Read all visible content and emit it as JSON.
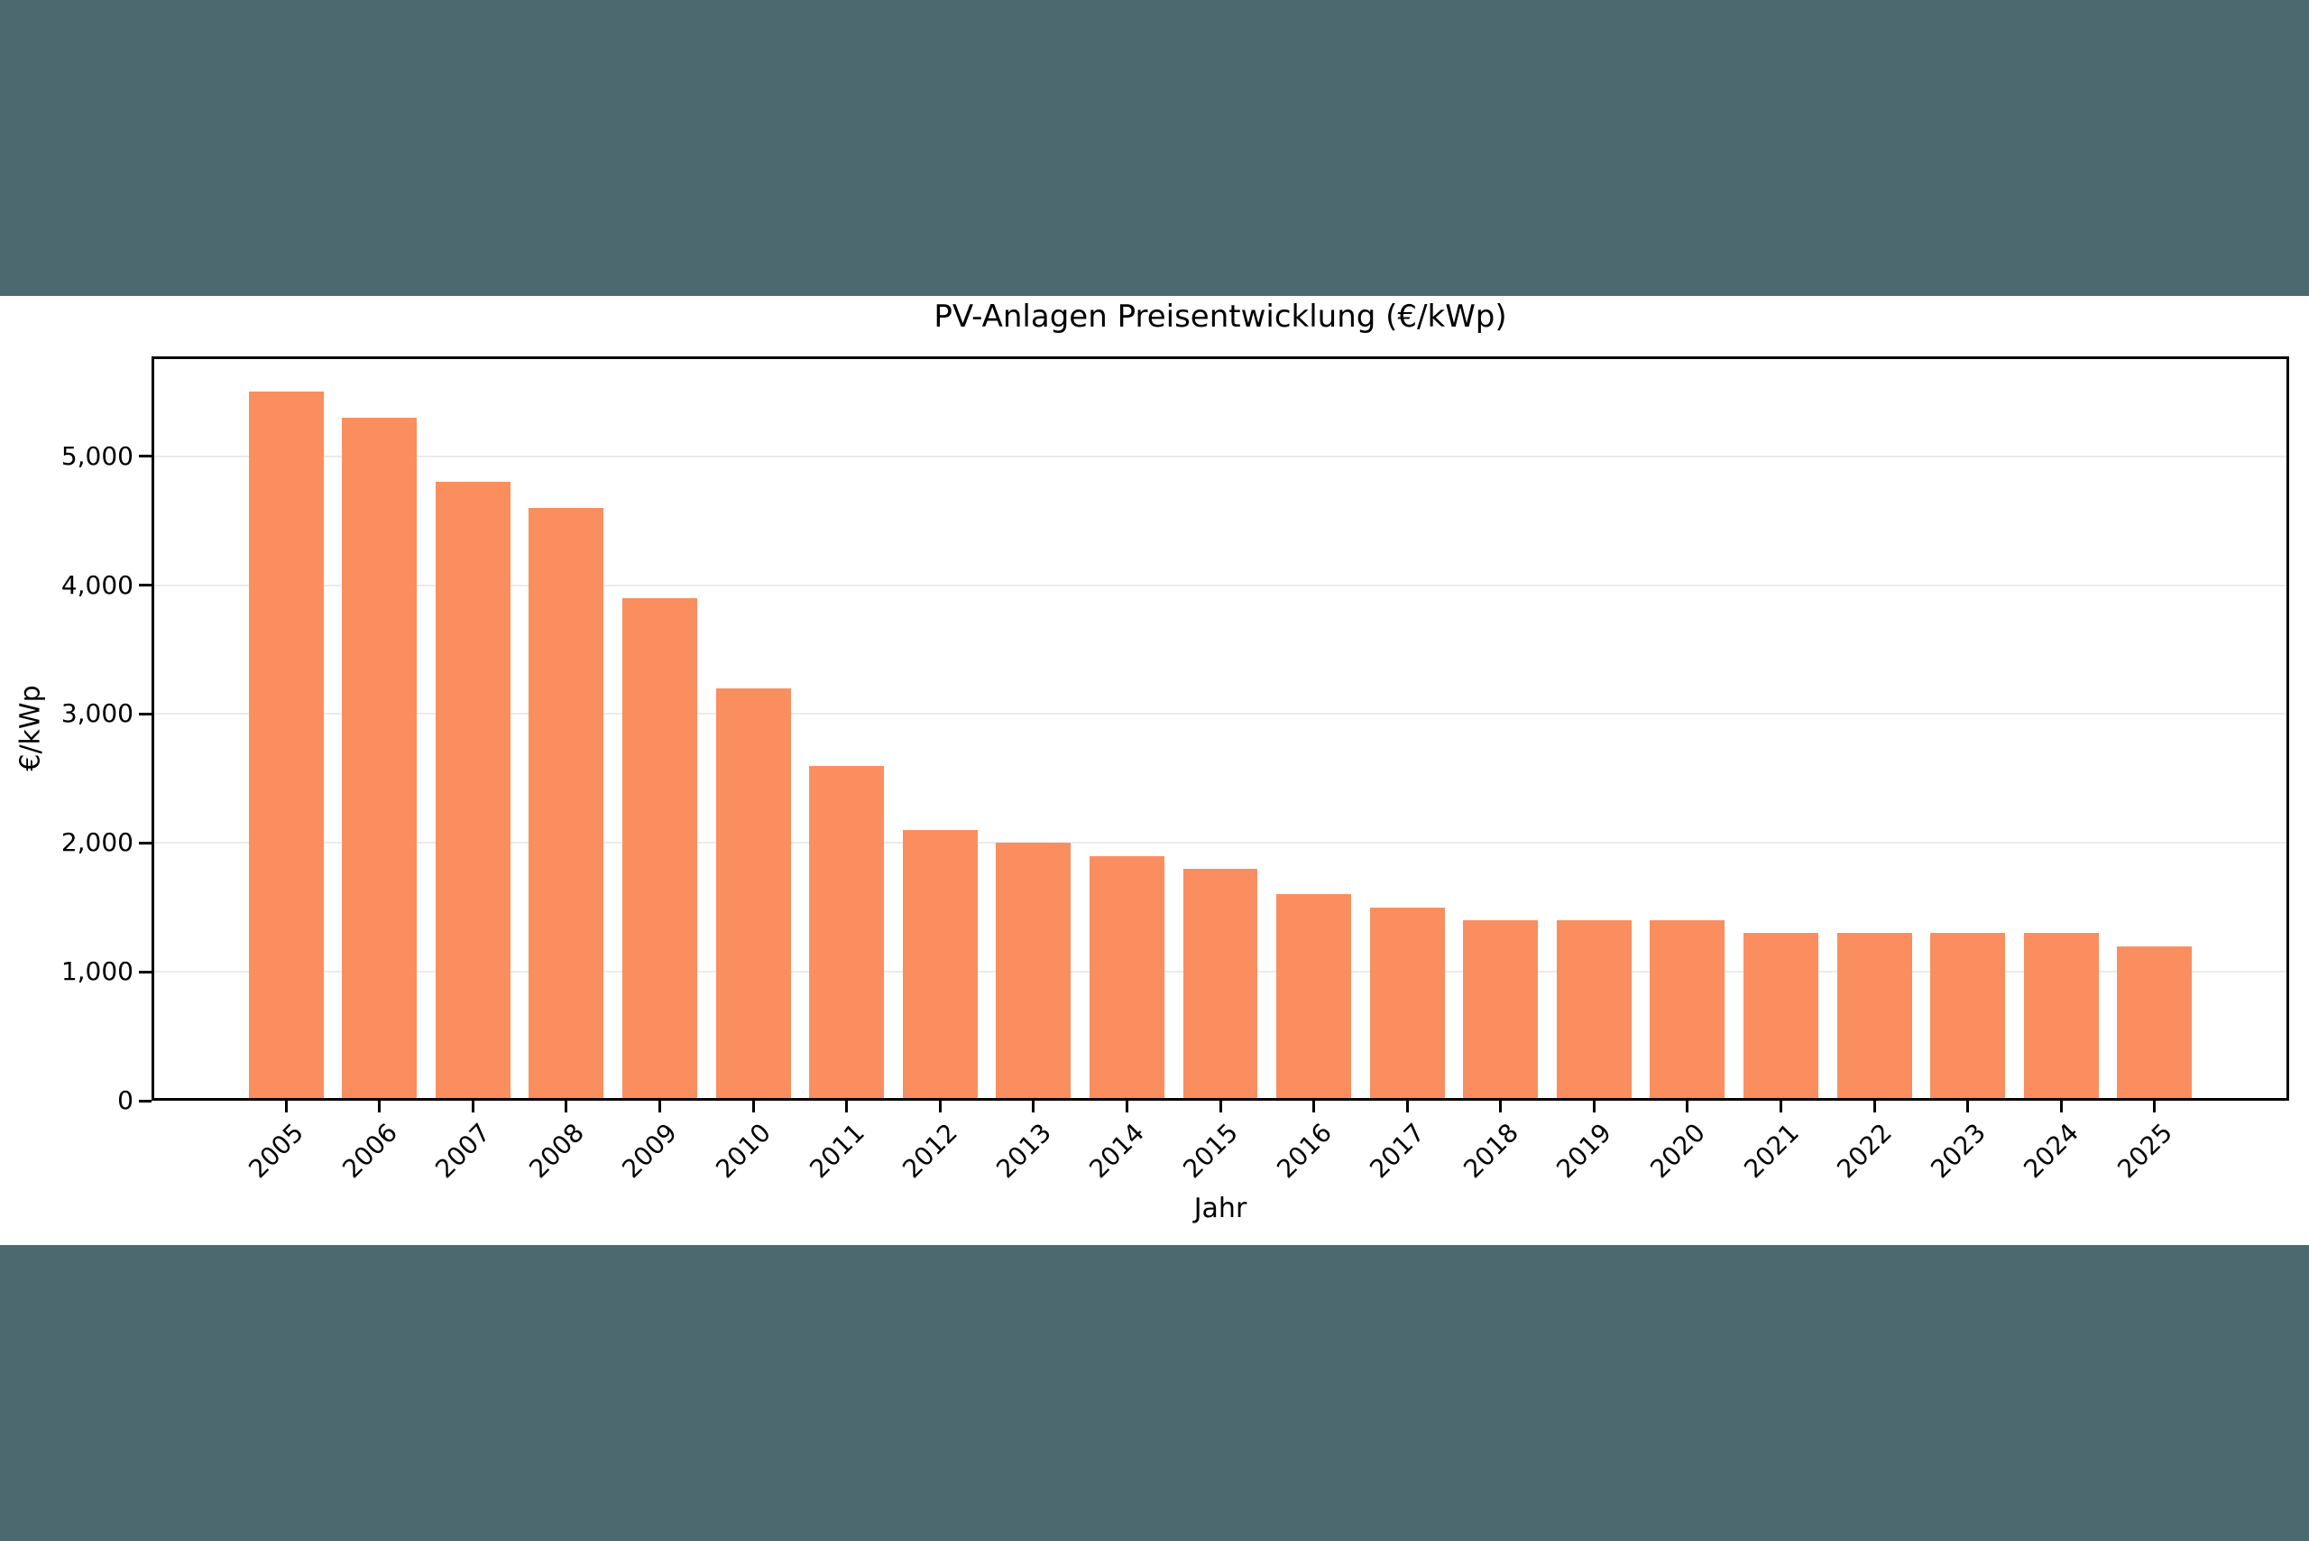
{
  "colors": {
    "letterbox_band": "#4c6970",
    "figure_background": "#ffffff",
    "bar_fill": "#fa8e5e",
    "gridline": "#ebebeb",
    "axis": "#000000"
  },
  "chart_data": {
    "type": "bar",
    "title": "PV-Anlagen Preisentwicklung (€/kWp)",
    "xlabel": "Jahr",
    "ylabel": "€/kWp",
    "categories": [
      "2005",
      "2006",
      "2007",
      "2008",
      "2009",
      "2010",
      "2011",
      "2012",
      "2013",
      "2014",
      "2015",
      "2016",
      "2017",
      "2018",
      "2019",
      "2020",
      "2021",
      "2022",
      "2023",
      "2024",
      "2025"
    ],
    "values": [
      5500,
      5300,
      4800,
      4600,
      3900,
      3200,
      2600,
      2100,
      2000,
      1900,
      1800,
      1600,
      1500,
      1400,
      1400,
      1400,
      1300,
      1300,
      1300,
      1300,
      1200
    ],
    "ylim": [
      0,
      5775
    ],
    "yticks": [
      0,
      1000,
      2000,
      3000,
      4000,
      5000
    ],
    "ytick_labels": [
      "0",
      "1,000",
      "2,000",
      "3,000",
      "4,000",
      "5,000"
    ],
    "grid": "horizontal",
    "legend": "none",
    "x_tick_rotation": 45,
    "bar_relative_width": 0.8
  }
}
